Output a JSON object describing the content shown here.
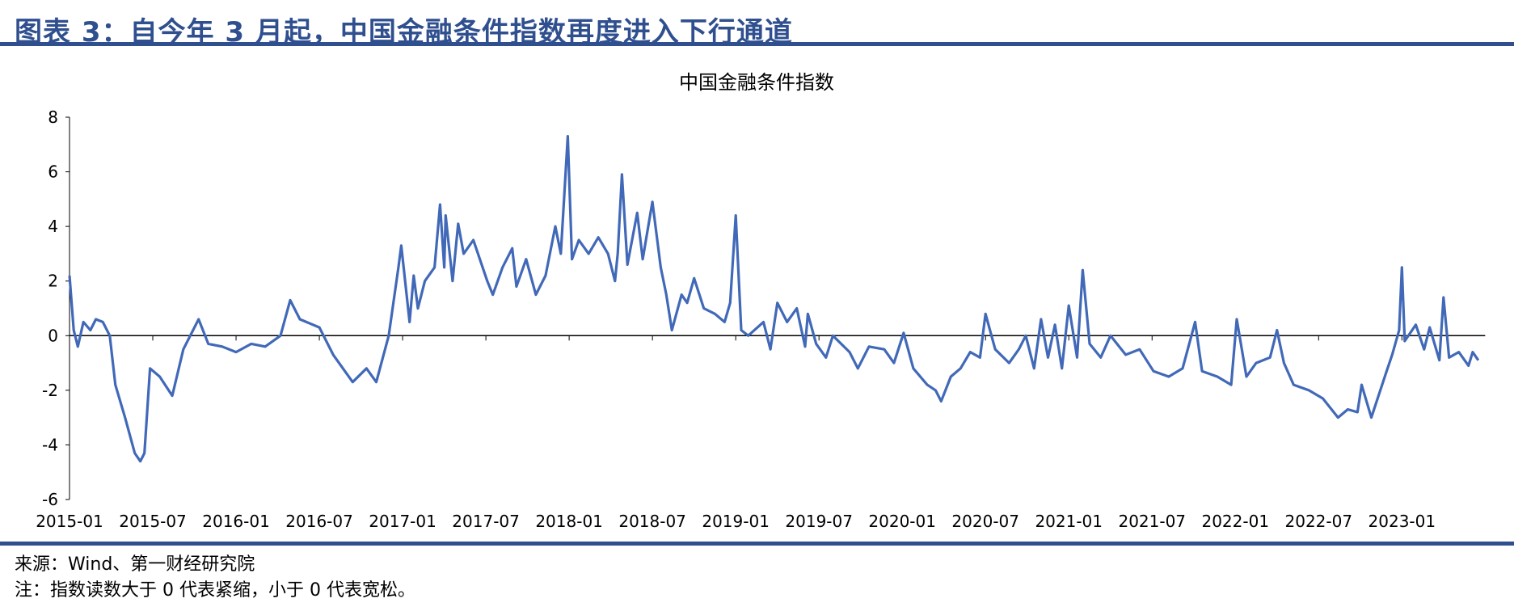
{
  "figure": {
    "title": "图表 3：自今年 3 月起，中国金融条件指数再度进入下行通道",
    "source": "来源：Wind、第一财经研究院",
    "note": "注：指数读数大于 0 代表紧缩，小于 0 代表宽松。"
  },
  "colors": {
    "accent": "#2f4f8f",
    "series": "#4169b8"
  },
  "chart_data": {
    "type": "line",
    "title": "中国金融条件指数",
    "xlabel": "",
    "ylabel": "",
    "x_unit": "months since 2015-01",
    "xlim": [
      0,
      102
    ],
    "ylim": [
      -6,
      8
    ],
    "yticks": [
      8,
      6,
      4,
      2,
      0,
      -2,
      -4,
      -6
    ],
    "xticks": [
      {
        "m": 0,
        "label": "2015-01"
      },
      {
        "m": 6,
        "label": "2015-07"
      },
      {
        "m": 12,
        "label": "2016-01"
      },
      {
        "m": 18,
        "label": "2016-07"
      },
      {
        "m": 24,
        "label": "2017-01"
      },
      {
        "m": 30,
        "label": "2017-07"
      },
      {
        "m": 36,
        "label": "2018-01"
      },
      {
        "m": 42,
        "label": "2018-07"
      },
      {
        "m": 48,
        "label": "2019-01"
      },
      {
        "m": 54,
        "label": "2019-07"
      },
      {
        "m": 60,
        "label": "2020-01"
      },
      {
        "m": 66,
        "label": "2020-07"
      },
      {
        "m": 72,
        "label": "2021-01"
      },
      {
        "m": 78,
        "label": "2021-07"
      },
      {
        "m": 84,
        "label": "2022-01"
      },
      {
        "m": 90,
        "label": "2022-07"
      },
      {
        "m": 96,
        "label": "2023-01"
      }
    ],
    "grid": false,
    "legend": "none",
    "series": [
      {
        "name": "中国金融条件指数",
        "points": [
          [
            0,
            2.2
          ],
          [
            0.3,
            0.2
          ],
          [
            0.6,
            -0.4
          ],
          [
            1,
            0.5
          ],
          [
            1.5,
            0.2
          ],
          [
            1.9,
            0.6
          ],
          [
            2.4,
            0.5
          ],
          [
            2.9,
            0
          ],
          [
            3.3,
            -1.8
          ],
          [
            4,
            -3
          ],
          [
            4.7,
            -4.3
          ],
          [
            5.1,
            -4.6
          ],
          [
            5.4,
            -4.3
          ],
          [
            5.8,
            -1.2
          ],
          [
            6.5,
            -1.5
          ],
          [
            7.4,
            -2.2
          ],
          [
            8.2,
            -0.5
          ],
          [
            9.3,
            0.6
          ],
          [
            10,
            -0.3
          ],
          [
            11,
            -0.4
          ],
          [
            12,
            -0.6
          ],
          [
            13.1,
            -0.3
          ],
          [
            14.1,
            -0.4
          ],
          [
            15.2,
            0
          ],
          [
            15.9,
            1.3
          ],
          [
            16.6,
            0.6
          ],
          [
            18,
            0.3
          ],
          [
            19,
            -0.7
          ],
          [
            20.4,
            -1.7
          ],
          [
            21.4,
            -1.2
          ],
          [
            22.1,
            -1.7
          ],
          [
            23,
            0
          ],
          [
            23.7,
            2.5
          ],
          [
            23.9,
            3.3
          ],
          [
            24.5,
            0.5
          ],
          [
            24.8,
            2.2
          ],
          [
            25.1,
            1
          ],
          [
            25.6,
            2
          ],
          [
            26.3,
            2.5
          ],
          [
            26.7,
            4.8
          ],
          [
            27,
            2.5
          ],
          [
            27.1,
            4.4
          ],
          [
            27.6,
            2
          ],
          [
            28,
            4.1
          ],
          [
            28.4,
            3
          ],
          [
            29.1,
            3.5
          ],
          [
            30.1,
            2
          ],
          [
            30.5,
            1.5
          ],
          [
            31.2,
            2.5
          ],
          [
            31.9,
            3.2
          ],
          [
            32.2,
            1.8
          ],
          [
            32.9,
            2.8
          ],
          [
            33.6,
            1.5
          ],
          [
            34.3,
            2.2
          ],
          [
            35,
            4
          ],
          [
            35.4,
            3
          ],
          [
            35.9,
            7.3
          ],
          [
            36.2,
            2.8
          ],
          [
            36.7,
            3.5
          ],
          [
            37.4,
            3
          ],
          [
            38.1,
            3.6
          ],
          [
            38.8,
            3
          ],
          [
            39.3,
            2
          ],
          [
            39.5,
            3
          ],
          [
            39.8,
            5.9
          ],
          [
            40.2,
            2.6
          ],
          [
            40.9,
            4.5
          ],
          [
            41.3,
            2.8
          ],
          [
            42,
            4.9
          ],
          [
            42.6,
            2.5
          ],
          [
            43,
            1.5
          ],
          [
            43.4,
            0.2
          ],
          [
            44.1,
            1.5
          ],
          [
            44.5,
            1.2
          ],
          [
            45,
            2.1
          ],
          [
            45.7,
            1
          ],
          [
            46.5,
            0.8
          ],
          [
            47.2,
            0.5
          ],
          [
            47.6,
            1.2
          ],
          [
            48,
            4.4
          ],
          [
            48.4,
            0.2
          ],
          [
            48.9,
            0
          ],
          [
            50,
            0.5
          ],
          [
            50.5,
            -0.5
          ],
          [
            51,
            1.2
          ],
          [
            51.7,
            0.5
          ],
          [
            52.4,
            1
          ],
          [
            53,
            -0.4
          ],
          [
            53.2,
            0.8
          ],
          [
            53.8,
            -0.3
          ],
          [
            54.5,
            -0.8
          ],
          [
            55,
            0
          ],
          [
            56.2,
            -0.6
          ],
          [
            56.8,
            -1.2
          ],
          [
            57.6,
            -0.4
          ],
          [
            58.7,
            -0.5
          ],
          [
            59.4,
            -1
          ],
          [
            60.1,
            0.1
          ],
          [
            60.8,
            -1.2
          ],
          [
            61.8,
            -1.8
          ],
          [
            62.4,
            -2
          ],
          [
            62.8,
            -2.4
          ],
          [
            63.5,
            -1.5
          ],
          [
            64.2,
            -1.2
          ],
          [
            64.9,
            -0.6
          ],
          [
            65.6,
            -0.8
          ],
          [
            66,
            0.8
          ],
          [
            66.7,
            -0.5
          ],
          [
            67.7,
            -1
          ],
          [
            68.4,
            -0.5
          ],
          [
            68.9,
            0
          ],
          [
            69.5,
            -1.2
          ],
          [
            70,
            0.6
          ],
          [
            70.5,
            -0.8
          ],
          [
            71,
            0.4
          ],
          [
            71.5,
            -1.2
          ],
          [
            72,
            1.1
          ],
          [
            72.6,
            -0.8
          ],
          [
            73,
            2.4
          ],
          [
            73.5,
            -0.3
          ],
          [
            74.3,
            -0.8
          ],
          [
            75,
            0
          ],
          [
            76.1,
            -0.7
          ],
          [
            77.1,
            -0.5
          ],
          [
            78.1,
            -1.3
          ],
          [
            79.2,
            -1.5
          ],
          [
            80.2,
            -1.2
          ],
          [
            81.1,
            0.5
          ],
          [
            81.6,
            -1.3
          ],
          [
            82.7,
            -1.5
          ],
          [
            83.7,
            -1.8
          ],
          [
            84.1,
            0.6
          ],
          [
            84.8,
            -1.5
          ],
          [
            85.5,
            -1
          ],
          [
            86.5,
            -0.8
          ],
          [
            87,
            0.2
          ],
          [
            87.5,
            -1
          ],
          [
            88.2,
            -1.8
          ],
          [
            89.3,
            -2
          ],
          [
            90.3,
            -2.3
          ],
          [
            91.4,
            -3
          ],
          [
            92.1,
            -2.7
          ],
          [
            92.8,
            -2.8
          ],
          [
            93.1,
            -1.8
          ],
          [
            93.8,
            -3
          ],
          [
            94.9,
            -1.3
          ],
          [
            95.3,
            -0.7
          ],
          [
            95.8,
            0.2
          ],
          [
            96,
            2.5
          ],
          [
            96.2,
            -0.2
          ],
          [
            97,
            0.4
          ],
          [
            97.6,
            -0.5
          ],
          [
            98,
            0.3
          ],
          [
            98.7,
            -0.9
          ],
          [
            99,
            1.4
          ],
          [
            99.4,
            -0.8
          ],
          [
            100.1,
            -0.6
          ],
          [
            100.8,
            -1.1
          ],
          [
            101.1,
            -0.6
          ],
          [
            101.5,
            -0.9
          ]
        ]
      }
    ]
  }
}
